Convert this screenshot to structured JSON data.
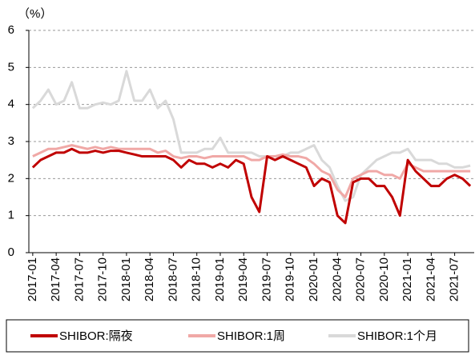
{
  "chart_data": {
    "type": "line",
    "y_label": "（%）",
    "categories": [
      "2017-01",
      null,
      null,
      "2017-04",
      null,
      null,
      "2017-07",
      null,
      null,
      "2017-10",
      null,
      null,
      "2018-01",
      null,
      null,
      "2018-04",
      null,
      null,
      "2018-07",
      null,
      null,
      "2018-10",
      null,
      null,
      "2019-01",
      null,
      null,
      "2019-04",
      null,
      null,
      "2019-07",
      null,
      null,
      "2019-10",
      null,
      null,
      "2020-01",
      null,
      null,
      "2020-04",
      null,
      null,
      "2020-07",
      null,
      null,
      "2020-10",
      null,
      null,
      "2021-01",
      null,
      null,
      "2021-04",
      null,
      null,
      "2021-07",
      null,
      null
    ],
    "series": [
      {
        "name": "SHIBOR:隔夜",
        "color": "#c00000",
        "values": [
          2.3,
          2.5,
          2.6,
          2.7,
          2.7,
          2.8,
          2.7,
          2.7,
          2.75,
          2.7,
          2.75,
          2.75,
          2.7,
          2.65,
          2.6,
          2.6,
          2.6,
          2.6,
          2.5,
          2.3,
          2.5,
          2.4,
          2.4,
          2.3,
          2.4,
          2.3,
          2.5,
          2.4,
          1.5,
          1.1,
          2.6,
          2.5,
          2.6,
          2.5,
          2.4,
          2.3,
          1.8,
          2.0,
          1.9,
          1.0,
          0.8,
          1.9,
          2.0,
          2.0,
          1.8,
          1.8,
          1.5,
          1.0,
          2.5,
          2.2,
          2.0,
          1.8,
          1.8,
          2.0,
          2.1,
          2.0,
          1.8
        ]
      },
      {
        "name": "SHIBOR:1周",
        "color": "#f0a8a6",
        "values": [
          2.6,
          2.7,
          2.8,
          2.8,
          2.85,
          2.9,
          2.85,
          2.8,
          2.85,
          2.8,
          2.85,
          2.8,
          2.8,
          2.8,
          2.8,
          2.8,
          2.7,
          2.75,
          2.6,
          2.55,
          2.6,
          2.6,
          2.55,
          2.6,
          2.6,
          2.6,
          2.6,
          2.6,
          2.5,
          2.5,
          2.6,
          2.6,
          2.65,
          2.6,
          2.6,
          2.55,
          2.4,
          2.2,
          2.1,
          1.7,
          1.5,
          2.0,
          2.1,
          2.2,
          2.2,
          2.1,
          2.1,
          2.0,
          2.4,
          2.3,
          2.2,
          2.2,
          2.2,
          2.2,
          2.2,
          2.2,
          2.2
        ]
      },
      {
        "name": "SHIBOR:1个月",
        "color": "#d9d9d9",
        "values": [
          3.9,
          4.1,
          4.4,
          4.0,
          4.1,
          4.6,
          3.9,
          3.9,
          4.0,
          4.05,
          4.0,
          4.1,
          4.9,
          4.1,
          4.1,
          4.4,
          3.9,
          4.1,
          3.6,
          2.7,
          2.7,
          2.7,
          2.8,
          2.8,
          3.1,
          2.7,
          2.7,
          2.7,
          2.7,
          2.6,
          2.6,
          2.6,
          2.6,
          2.7,
          2.7,
          2.8,
          2.9,
          2.5,
          2.3,
          1.8,
          1.4,
          1.5,
          2.1,
          2.3,
          2.5,
          2.6,
          2.7,
          2.7,
          2.8,
          2.5,
          2.5,
          2.5,
          2.4,
          2.4,
          2.3,
          2.3,
          2.35
        ]
      }
    ],
    "ylim": [
      0,
      6
    ],
    "yticks": [
      0,
      1,
      2,
      3,
      4,
      5,
      6
    ],
    "grid": true
  }
}
